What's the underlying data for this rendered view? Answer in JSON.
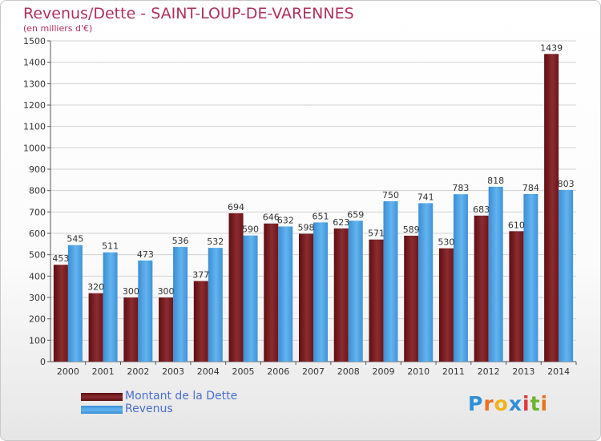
{
  "title": "Revenus/Dette - SAINT-LOUP-DE-VARENNES",
  "subtitle": "(en milliers d'€)",
  "colors": {
    "debt": "#7a1a1e",
    "debt_light": "#8e3236",
    "revenue": "#3e92d6",
    "revenue_light": "#5fb2ec",
    "title": "#b0305a",
    "legend_text": "#4a6fd0"
  },
  "chart_data": {
    "type": "bar",
    "categories": [
      "2000",
      "2001",
      "2002",
      "2003",
      "2004",
      "2005",
      "2006",
      "2007",
      "2008",
      "2009",
      "2010",
      "2011",
      "2012",
      "2013",
      "2014"
    ],
    "series": [
      {
        "name": "Montant de la Dette",
        "values": [
          453,
          320,
          300,
          300,
          377,
          694,
          646,
          598,
          623,
          571,
          589,
          530,
          683,
          610,
          1439
        ]
      },
      {
        "name": "Revenus",
        "values": [
          545,
          511,
          473,
          536,
          532,
          590,
          632,
          651,
          659,
          750,
          741,
          783,
          818,
          784,
          803
        ]
      }
    ],
    "ylim": [
      0,
      1500
    ],
    "yticks": [
      0,
      100,
      200,
      300,
      400,
      500,
      600,
      700,
      800,
      900,
      1000,
      1100,
      1200,
      1300,
      1400,
      1500
    ],
    "grid": true,
    "legend": "bottom-left"
  },
  "legend": {
    "items": [
      "Montant de la Dette",
      "Revenus"
    ]
  },
  "logo": {
    "letters": [
      "P",
      "r",
      "o",
      "x",
      "i",
      "t",
      "i"
    ],
    "colors": [
      "#2f8fd8",
      "#e8731e",
      "#f2b21c",
      "#2f8fd8",
      "#e03c3c",
      "#6ab52f",
      "#e8731e"
    ]
  }
}
